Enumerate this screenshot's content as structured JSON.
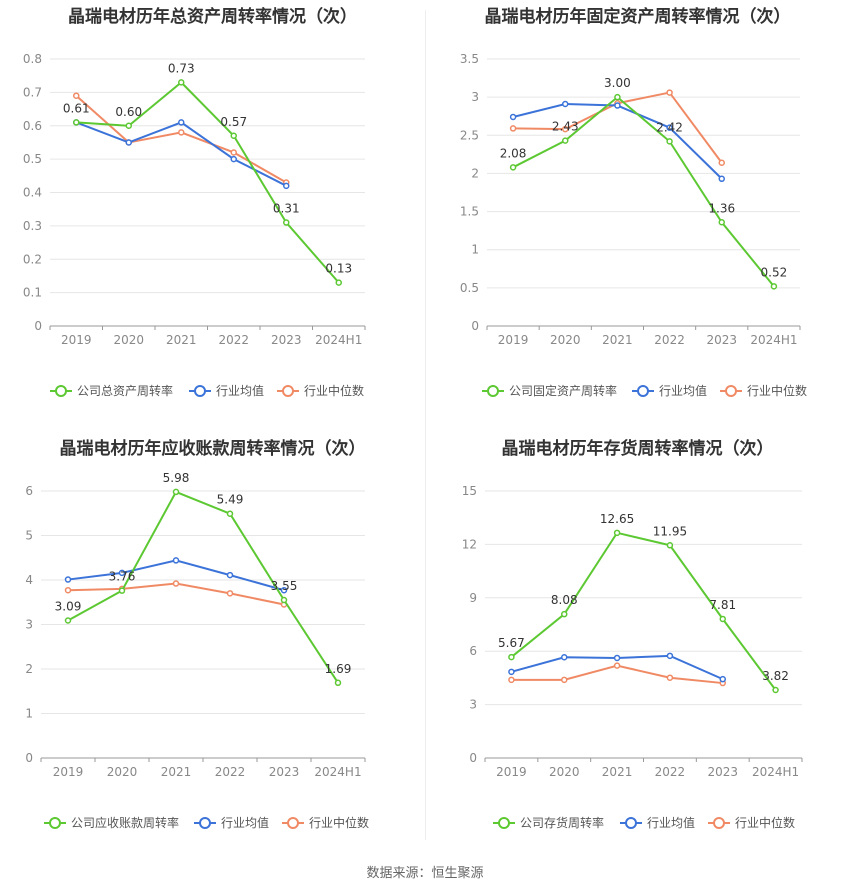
{
  "source": "数据来源：恒生聚源",
  "colors": {
    "company": "#5cc832",
    "avg": "#3b73d9",
    "median": "#f08a65",
    "grid": "#e6e6e6",
    "axis": "#999999"
  },
  "chart_data": [
    {
      "type": "line",
      "title": "晶瑞电材历年总资产周转率情况（次）",
      "categories": [
        "2019",
        "2020",
        "2021",
        "2022",
        "2023",
        "2024H1"
      ],
      "ylim": [
        0,
        0.8
      ],
      "yticks": [
        "0",
        "0.1",
        "0.2",
        "0.3",
        "0.4",
        "0.5",
        "0.6",
        "0.7",
        "0.8"
      ],
      "series": [
        {
          "name": "公司总资产周转率",
          "key": "company",
          "values": [
            0.61,
            0.6,
            0.73,
            0.57,
            0.31,
            0.13
          ],
          "labels": [
            "0.61",
            "0.60",
            "0.73",
            "0.57",
            "0.31",
            "0.13"
          ]
        },
        {
          "name": "行业均值",
          "key": "avg",
          "values": [
            0.61,
            0.55,
            0.61,
            0.5,
            0.42,
            null
          ]
        },
        {
          "name": "行业中位数",
          "key": "median",
          "values": [
            0.69,
            0.55,
            0.58,
            0.52,
            0.43,
            null
          ]
        }
      ]
    },
    {
      "type": "line",
      "title": "晶瑞电材历年固定资产周转率情况（次）",
      "categories": [
        "2019",
        "2020",
        "2021",
        "2022",
        "2023",
        "2024H1"
      ],
      "ylim": [
        0,
        3.5
      ],
      "yticks": [
        "0",
        "0.5",
        "1",
        "1.5",
        "2",
        "2.5",
        "3",
        "3.5"
      ],
      "series": [
        {
          "name": "公司固定资产周转率",
          "key": "company",
          "values": [
            2.08,
            2.43,
            3.0,
            2.42,
            1.36,
            0.52
          ],
          "labels": [
            "2.08",
            "2.43",
            "3.00",
            "2.42",
            "1.36",
            "0.52"
          ]
        },
        {
          "name": "行业均值",
          "key": "avg",
          "values": [
            2.74,
            2.91,
            2.89,
            2.6,
            1.93,
            null
          ]
        },
        {
          "name": "行业中位数",
          "key": "median",
          "values": [
            2.59,
            2.58,
            2.92,
            3.06,
            2.14,
            null
          ]
        }
      ]
    },
    {
      "type": "line",
      "title": "晶瑞电材历年应收账款周转率情况（次）",
      "categories": [
        "2019",
        "2020",
        "2021",
        "2022",
        "2023",
        "2024H1"
      ],
      "ylim": [
        0,
        6
      ],
      "yticks": [
        "0",
        "1",
        "2",
        "3",
        "4",
        "5",
        "6"
      ],
      "series": [
        {
          "name": "公司应收账款周转率",
          "key": "company",
          "values": [
            3.09,
            3.76,
            5.98,
            5.49,
            3.55,
            1.69
          ],
          "labels": [
            "3.09",
            "3.76",
            "5.98",
            "5.49",
            "3.55",
            "1.69"
          ]
        },
        {
          "name": "行业均值",
          "key": "avg",
          "values": [
            4.01,
            4.16,
            4.44,
            4.11,
            3.77,
            null
          ]
        },
        {
          "name": "行业中位数",
          "key": "median",
          "values": [
            3.77,
            3.8,
            3.92,
            3.7,
            3.45,
            null
          ]
        }
      ]
    },
    {
      "type": "line",
      "title": "晶瑞电材历年存货周转率情况（次）",
      "categories": [
        "2019",
        "2020",
        "2021",
        "2022",
        "2023",
        "2024H1"
      ],
      "ylim": [
        0,
        15
      ],
      "yticks": [
        "0",
        "3",
        "6",
        "9",
        "12",
        "15"
      ],
      "series": [
        {
          "name": "公司存货周转率",
          "key": "company",
          "values": [
            5.67,
            8.08,
            12.65,
            11.95,
            7.81,
            3.82
          ],
          "labels": [
            "5.67",
            "8.08",
            "12.65",
            "11.95",
            "7.81",
            "3.82"
          ]
        },
        {
          "name": "行业均值",
          "key": "avg",
          "values": [
            4.84,
            5.66,
            5.62,
            5.74,
            4.43,
            null
          ]
        },
        {
          "name": "行业中位数",
          "key": "median",
          "values": [
            4.39,
            4.39,
            5.19,
            4.51,
            4.21,
            null
          ]
        }
      ]
    }
  ]
}
